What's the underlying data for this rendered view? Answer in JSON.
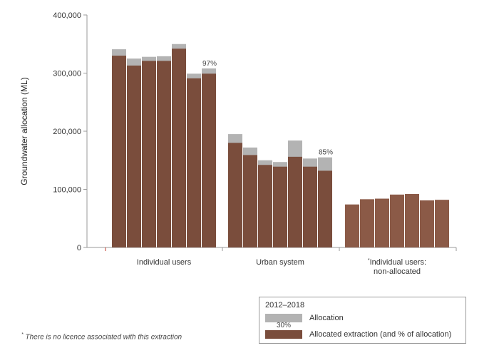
{
  "chart_data": {
    "type": "bar",
    "subtype": "grouped-overlay",
    "ylabel": "Groundwater allocation (ML)",
    "ylim": [
      0,
      400000
    ],
    "yticks": [
      0,
      100000,
      200000,
      300000,
      400000
    ],
    "ytick_labels": [
      "0",
      "100,000",
      "200,000",
      "300,000",
      "400,000"
    ],
    "groups": [
      {
        "label": "Individual users",
        "allocation": [
          341000,
          325000,
          328000,
          329000,
          350000,
          299000,
          308000
        ],
        "extraction": [
          330000,
          313000,
          321000,
          321000,
          342000,
          291000,
          299000
        ],
        "last_pct_label": "97%"
      },
      {
        "label": "Urban system",
        "allocation": [
          195000,
          172000,
          150000,
          147000,
          184000,
          153000,
          155000
        ],
        "extraction": [
          180000,
          159000,
          142000,
          139000,
          156000,
          139000,
          132000
        ],
        "last_pct_label": "85%"
      },
      {
        "label": "Individual users: non-allocated",
        "label_lines": [
          "Individual users:",
          "non-allocated"
        ],
        "label_marker": "*",
        "allocation": null,
        "extraction": [
          74000,
          83000,
          84000,
          91000,
          92000,
          81000,
          82000
        ],
        "last_pct_label": ""
      }
    ],
    "colors": {
      "allocation": "#b3b3b3",
      "extraction": "#7a4d3c",
      "extraction_nonallocated": "#8b5a47",
      "axis": "#999999"
    },
    "legend": {
      "title": "2012–2018",
      "entries": [
        {
          "label": "Allocation",
          "series": "allocation"
        },
        {
          "label": "Allocated extraction (and % of allocation)",
          "series": "extraction",
          "sample_pct": "30%"
        }
      ]
    }
  },
  "footnote": {
    "marker": "*",
    "text": "There is no licence associated with this extraction"
  }
}
